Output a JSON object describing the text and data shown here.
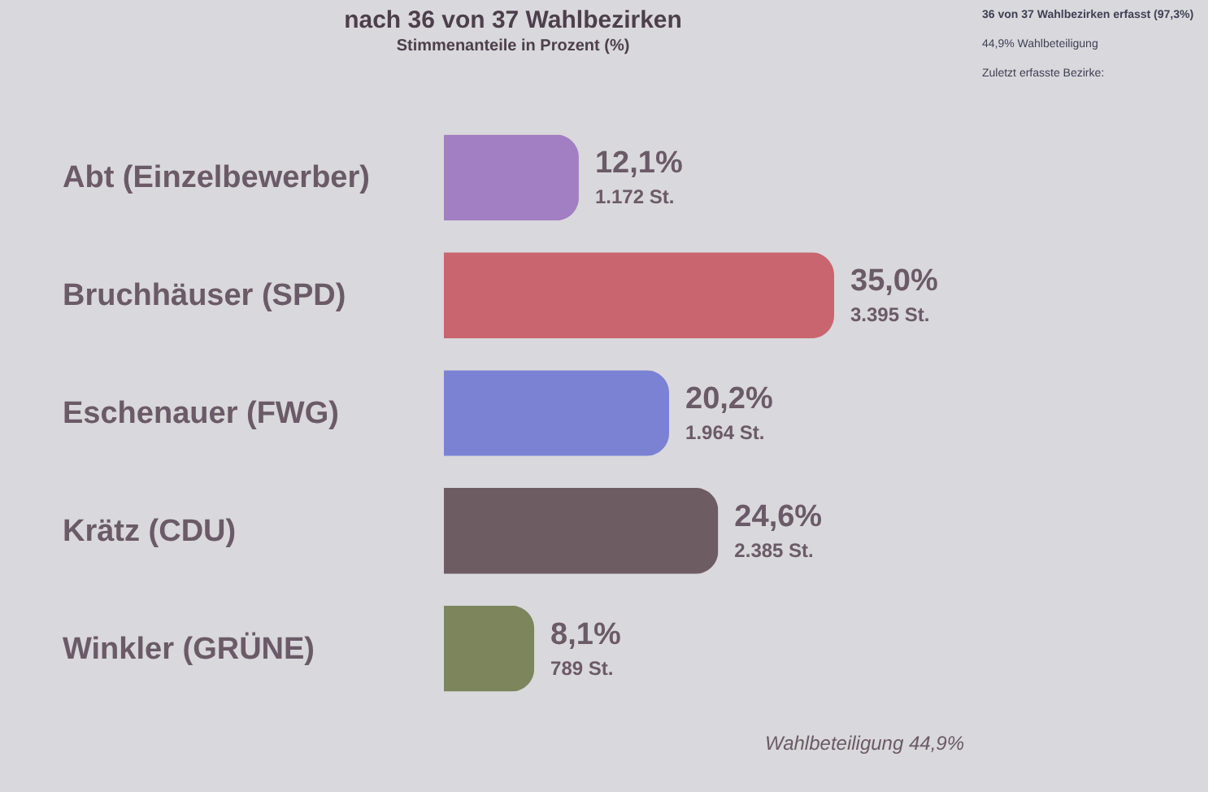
{
  "chart_data": [
    {
      "type": "bar",
      "orientation": "horizontal",
      "title": "nach 36 von 37 Wahlbezirken",
      "subtitle": "Stimmenanteile in Prozent (%)",
      "categories": [
        "Abt (Einzelbewerber)",
        "Bruchhäuser (SPD)",
        "Eschenauer (FWG)",
        "Krätz (CDU)",
        "Winkler (GRÜNE)"
      ],
      "values": [
        12.1,
        35.0,
        20.2,
        24.6,
        8.1
      ],
      "colors": [
        "#a17fc2",
        "#c9656f",
        "#7b82d4",
        "#6d5c62",
        "#7c855c"
      ],
      "value_labels": [
        "12,1%",
        "35,0%",
        "20,2%",
        "24,6%",
        "8,1%"
      ],
      "tick_labels": "y",
      "annotations": [
        {
          "text": "1.172 St.",
          "x": 12.1,
          "y": "Abt (Einzelbewerber)"
        },
        {
          "text": "3.395 St.",
          "x": 35.0,
          "y": "Bruchhäuser (SPD)"
        },
        {
          "text": "1.964 St.",
          "x": 20.2,
          "y": "Eschenauer (FWG)"
        },
        {
          "text": "2.385 St.",
          "x": 24.6,
          "y": "Krätz (CDU)"
        },
        {
          "text": "789 St.",
          "x": 8.1,
          "y": "Winkler (GRÜNE)"
        },
        "Wahlbeteiligung 44,9%"
      ]
    },
    {
      "type": "other",
      "title": "36 von 37 Wahlbezirken erfasst (97,3%)",
      "annotations": [
        "44,9% Wahlbeteiligung",
        "Zuletzt erfasste Bezirke:"
      ]
    }
  ]
}
